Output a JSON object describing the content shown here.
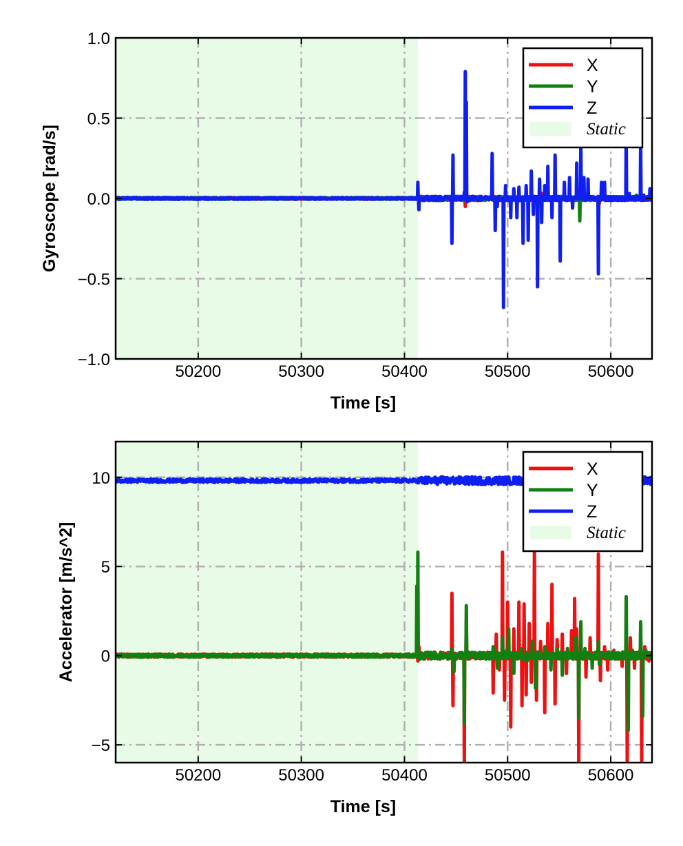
{
  "chart_data": [
    {
      "type": "line",
      "xlabel": "Time [s]",
      "ylabel": "Gyroscope [rad/s]",
      "xlim": [
        50120,
        50640
      ],
      "ylim": [
        -1.0,
        1.0
      ],
      "xticks": [
        50200,
        50300,
        50400,
        50500,
        50600
      ],
      "xtick_labels": [
        "50200",
        "50300",
        "50400",
        "50500",
        "50600"
      ],
      "yticks": [
        -1.0,
        -0.5,
        0.0,
        0.5,
        1.0
      ],
      "ytick_labels": [
        "−1.0",
        "−0.5",
        "0.0",
        "0.5",
        "1.0"
      ],
      "grid": true,
      "legend_position": "top-right",
      "static_span": [
        50120,
        50413
      ],
      "static_color": "#e8fbe6",
      "legend": [
        "X",
        "Y",
        "Z",
        "Static"
      ],
      "series": [
        {
          "name": "X",
          "color": "#ee1111",
          "baseline": 0.0,
          "spikes": [
            [
              50413,
              0.04
            ],
            [
              50414,
              -0.04
            ],
            [
              50459,
              -0.05
            ],
            [
              50533,
              0.03
            ],
            [
              50589,
              -0.03
            ]
          ]
        },
        {
          "name": "Y",
          "color": "#118011",
          "baseline": 0.0,
          "spikes": [
            [
              50570,
              -0.14
            ],
            [
              50625,
              0.02
            ],
            [
              50633,
              0.01
            ]
          ]
        },
        {
          "name": "Z",
          "color": "#0f1ff0",
          "baseline": 0.0,
          "spikes": [
            [
              50413,
              0.1
            ],
            [
              50414,
              -0.07
            ],
            [
              50446,
              -0.28
            ],
            [
              50447,
              0.27
            ],
            [
              50458,
              0.04
            ],
            [
              50459,
              0.79
            ],
            [
              50460,
              0.6
            ],
            [
              50461,
              -0.02
            ],
            [
              50485,
              0.28
            ],
            [
              50488,
              -0.2
            ],
            [
              50490,
              -0.05
            ],
            [
              50496,
              -0.68
            ],
            [
              50498,
              0.08
            ],
            [
              50503,
              -0.12
            ],
            [
              50506,
              0.06
            ],
            [
              50509,
              -0.12
            ],
            [
              50511,
              0.07
            ],
            [
              50515,
              -0.28
            ],
            [
              50518,
              0.08
            ],
            [
              50520,
              -0.26
            ],
            [
              50523,
              0.17
            ],
            [
              50525,
              -0.1
            ],
            [
              50529,
              -0.55
            ],
            [
              50531,
              0.12
            ],
            [
              50533,
              -0.15
            ],
            [
              50536,
              0.08
            ],
            [
              50539,
              0.2
            ],
            [
              50543,
              -0.12
            ],
            [
              50546,
              0.27
            ],
            [
              50551,
              -0.39
            ],
            [
              50555,
              0.1
            ],
            [
              50560,
              0.13
            ],
            [
              50563,
              -0.06
            ],
            [
              50567,
              0.22
            ],
            [
              50571,
              0.35
            ],
            [
              50574,
              0.13
            ],
            [
              50578,
              0.12
            ],
            [
              50588,
              -0.47
            ],
            [
              50591,
              0.1
            ],
            [
              50594,
              0.1
            ],
            [
              50615,
              0.37
            ],
            [
              50618,
              0.03
            ],
            [
              50629,
              0.34
            ],
            [
              50632,
              0.02
            ],
            [
              50638,
              0.06
            ],
            [
              50639,
              -0.01
            ]
          ]
        }
      ]
    },
    {
      "type": "line",
      "xlabel": "Time [s]",
      "ylabel": "Accelerator [m/s^2]",
      "xlim": [
        50120,
        50640
      ],
      "ylim": [
        -6,
        12
      ],
      "xticks": [
        50200,
        50300,
        50400,
        50500,
        50600
      ],
      "xtick_labels": [
        "50200",
        "50300",
        "50400",
        "50500",
        "50600"
      ],
      "yticks": [
        -5,
        0,
        5,
        10
      ],
      "ytick_labels": [
        "−5",
        "0",
        "5",
        "10"
      ],
      "grid": true,
      "legend_position": "top-right",
      "static_span": [
        50120,
        50413
      ],
      "static_color": "#e8fbe6",
      "legend": [
        "X",
        "Y",
        "Z",
        "Static"
      ],
      "series": [
        {
          "name": "X",
          "color": "#ee1111",
          "baseline": 0.0,
          "spikes": [
            [
              50413,
              -0.3
            ],
            [
              50414,
              0.5
            ],
            [
              50446,
              3.5
            ],
            [
              50447,
              -2.8
            ],
            [
              50458,
              -6.0
            ],
            [
              50460,
              2.0
            ],
            [
              50486,
              -2.1
            ],
            [
              50489,
              1.2
            ],
            [
              50492,
              -0.8
            ],
            [
              50495,
              5.8
            ],
            [
              50497,
              -2.5
            ],
            [
              50500,
              3.0
            ],
            [
              50503,
              -4.0
            ],
            [
              50506,
              1.5
            ],
            [
              50511,
              3.0
            ],
            [
              50514,
              -2.8
            ],
            [
              50516,
              2.9
            ],
            [
              50518,
              -2.2
            ],
            [
              50521,
              1.8
            ],
            [
              50523,
              -1.5
            ],
            [
              50526,
              6.0
            ],
            [
              50528,
              -2.5
            ],
            [
              50532,
              0.8
            ],
            [
              50536,
              -3.2
            ],
            [
              50539,
              1.8
            ],
            [
              50543,
              4.0
            ],
            [
              50546,
              -2.7
            ],
            [
              50548,
              0.9
            ],
            [
              50553,
              1.2
            ],
            [
              50557,
              -1.0
            ],
            [
              50562,
              1.4
            ],
            [
              50565,
              3.2
            ],
            [
              50567,
              1.5
            ],
            [
              50569,
              -6.0
            ],
            [
              50576,
              -1.2
            ],
            [
              50580,
              1.0
            ],
            [
              50588,
              5.7
            ],
            [
              50590,
              -1.4
            ],
            [
              50594,
              0.5
            ],
            [
              50597,
              -0.8
            ],
            [
              50603,
              0.3
            ],
            [
              50611,
              -0.6
            ],
            [
              50616,
              -6.0
            ],
            [
              50619,
              1.0
            ],
            [
              50623,
              -0.7
            ],
            [
              50630,
              -6.0
            ],
            [
              50633,
              0.5
            ],
            [
              50637,
              -0.3
            ]
          ]
        },
        {
          "name": "Y",
          "color": "#118011",
          "baseline": 0.0,
          "spikes": [
            [
              50412,
              3.9
            ],
            [
              50413,
              5.8
            ],
            [
              50415,
              -0.2
            ],
            [
              50446,
              0.4
            ],
            [
              50448,
              -0.9
            ],
            [
              50458,
              -3.8
            ],
            [
              50460,
              2.8
            ],
            [
              50462,
              0.2
            ],
            [
              50486,
              0.5
            ],
            [
              50490,
              -0.7
            ],
            [
              50495,
              1.0
            ],
            [
              50499,
              0.3
            ],
            [
              50501,
              1.5
            ],
            [
              50506,
              -1.0
            ],
            [
              50513,
              0.4
            ],
            [
              50519,
              -0.3
            ],
            [
              50524,
              0.8
            ],
            [
              50527,
              -1.8
            ],
            [
              50529,
              0.2
            ],
            [
              50536,
              0.5
            ],
            [
              50542,
              -0.8
            ],
            [
              50548,
              0.4
            ],
            [
              50553,
              -1.1
            ],
            [
              50558,
              0.4
            ],
            [
              50566,
              1.0
            ],
            [
              50569,
              -3.5
            ],
            [
              50571,
              1.9
            ],
            [
              50575,
              0.4
            ],
            [
              50582,
              -0.7
            ],
            [
              50588,
              0.8
            ],
            [
              50589,
              -0.5
            ],
            [
              50598,
              0.2
            ],
            [
              50611,
              -0.2
            ],
            [
              50615,
              3.3
            ],
            [
              50617,
              -4.2
            ],
            [
              50621,
              0.3
            ],
            [
              50629,
              1.9
            ],
            [
              50631,
              -3.4
            ],
            [
              50634,
              0.3
            ]
          ]
        },
        {
          "name": "Z",
          "color": "#0f1ff0",
          "baseline": 9.81,
          "spikes": [
            [
              50460,
              9.95
            ],
            [
              50530,
              9.7
            ],
            [
              50600,
              9.9
            ]
          ]
        }
      ]
    }
  ]
}
